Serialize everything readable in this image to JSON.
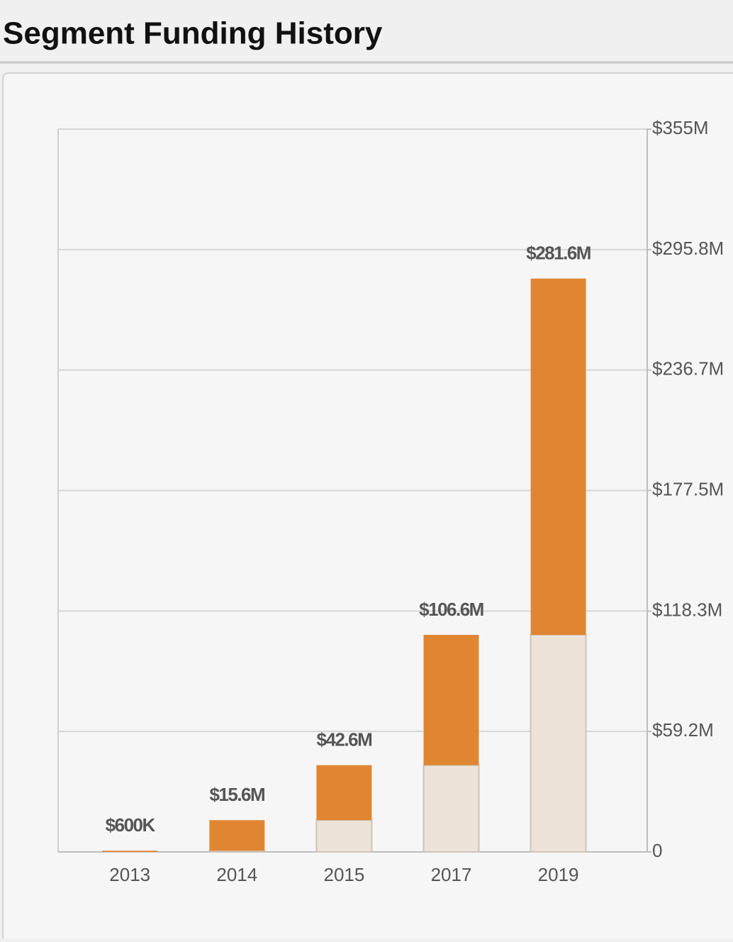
{
  "chart_data": {
    "type": "stacked_bar",
    "title": "Segment Funding History",
    "categories": [
      "2013",
      "2014",
      "2015",
      "2017",
      "2019"
    ],
    "series": [
      {
        "color": "#ede3d8",
        "values": [
          0,
          600000,
          15600000,
          42600000,
          106600000
        ]
      },
      {
        "color": "#e08632",
        "values": [
          600000,
          15000000,
          27000000,
          64000000,
          175000000
        ]
      }
    ],
    "totals": [
      600000,
      15600000,
      42600000,
      106600000,
      281600000
    ],
    "total_labels": [
      "$600K",
      "$15.6M",
      "$42.6M",
      "$106.6M",
      "$281.6M"
    ],
    "ylim": [
      0,
      355000000
    ],
    "yticks": [
      0,
      {
        "value": 59200000,
        "label": "$59.2M"
      },
      {
        "value": 118300000,
        "label": "$118.3M"
      },
      {
        "value": 177500000,
        "label": "$177.5M"
      },
      {
        "value": 236700000,
        "label": "$236.7M"
      },
      {
        "value": 295800000,
        "label": "$295.8M"
      },
      {
        "value": 355000000,
        "label": "$355M"
      }
    ],
    "grid": true
  }
}
